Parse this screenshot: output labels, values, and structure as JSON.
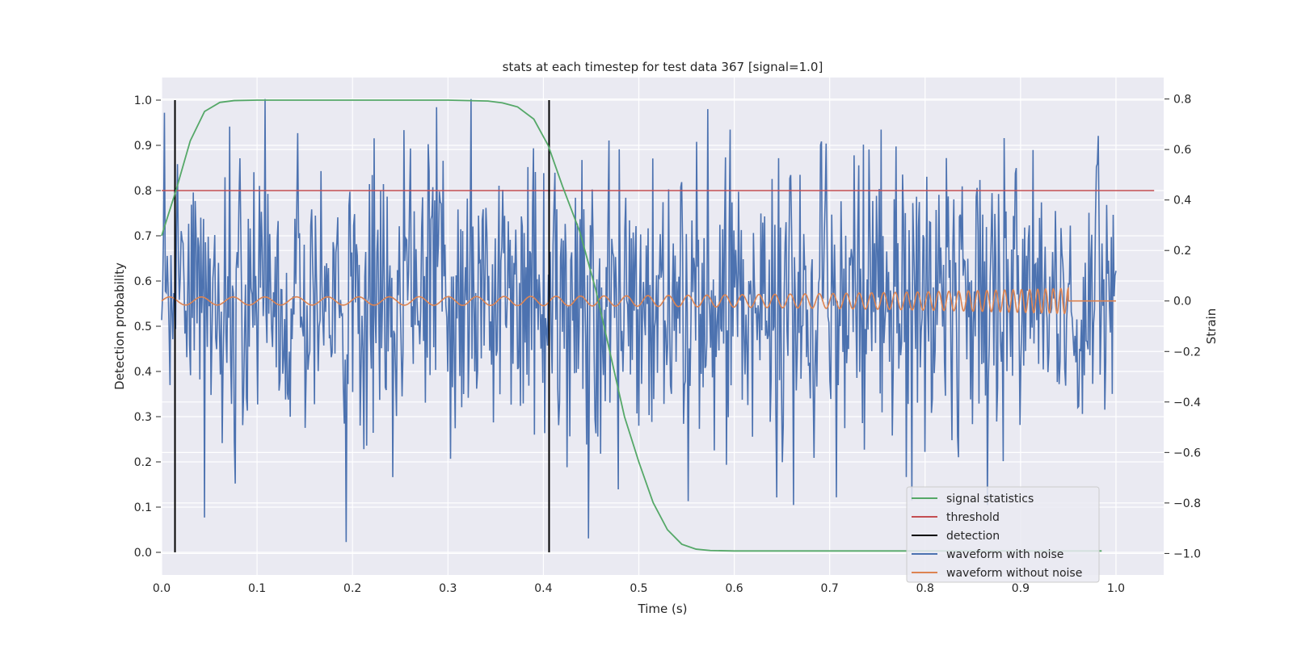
{
  "chart_data": {
    "type": "line",
    "title": "stats at each timestep for test data 367 [signal=1.0]",
    "xlabel": "Time (s)",
    "ylabel": "Detection probability",
    "y2label": "Strain",
    "xlim": [
      0.0,
      1.05
    ],
    "ylim": [
      -0.05,
      1.05
    ],
    "y2lim": [
      -1.085,
      0.885
    ],
    "x_ticks": [
      "0.0",
      "0.1",
      "0.2",
      "0.3",
      "0.4",
      "0.5",
      "0.6",
      "0.7",
      "0.8",
      "0.9",
      "1.0"
    ],
    "y_ticks": [
      "0.0",
      "0.1",
      "0.2",
      "0.3",
      "0.4",
      "0.5",
      "0.6",
      "0.7",
      "0.8",
      "0.9",
      "1.0"
    ],
    "y2_ticks": [
      "−1.0",
      "−0.8",
      "−0.6",
      "−0.4",
      "−0.2",
      "0.0",
      "0.2",
      "0.4",
      "0.6",
      "0.8"
    ],
    "grid": true,
    "legend_position": "lower-right",
    "series": [
      {
        "name": "signal statistics",
        "color": "#55a868",
        "axis": "left",
        "x": [
          0.0,
          0.015,
          0.03,
          0.045,
          0.061,
          0.076,
          0.1,
          0.2,
          0.3,
          0.342,
          0.357,
          0.373,
          0.39,
          0.405,
          0.42,
          0.438,
          0.455,
          0.47,
          0.485,
          0.5,
          0.515,
          0.53,
          0.545,
          0.56,
          0.575,
          0.6,
          0.7,
          0.8,
          0.9,
          0.985
        ],
        "y": [
          0.7,
          0.8,
          0.91,
          0.975,
          0.995,
          0.999,
          1.0,
          1.0,
          1.0,
          0.998,
          0.994,
          0.985,
          0.958,
          0.9,
          0.81,
          0.71,
          0.58,
          0.44,
          0.3,
          0.2,
          0.11,
          0.05,
          0.018,
          0.007,
          0.004,
          0.003,
          0.003,
          0.003,
          0.003,
          0.003
        ]
      },
      {
        "name": "threshold",
        "color": "#c44e52",
        "axis": "left",
        "x": [
          0.0,
          1.04
        ],
        "y": [
          0.8,
          0.8
        ]
      },
      {
        "name": "detection",
        "color": "#000000",
        "axis": "left",
        "x_positions": [
          0.014,
          0.406
        ],
        "y_range": [
          0.0,
          1.0
        ]
      },
      {
        "name": "waveform with noise",
        "color": "#4c72b0",
        "axis": "right",
        "time_range": [
          0.0,
          1.0
        ],
        "strain_range": [
          -1.0,
          0.8
        ],
        "std": 0.3,
        "samples": 1024
      },
      {
        "name": "waveform without noise",
        "color": "#dd8452",
        "axis": "right",
        "time_range": [
          0.0,
          1.0
        ],
        "merger_time": 0.95,
        "amplitude_start": 0.016,
        "amplitude_end": 0.05,
        "frequency_start": 30,
        "frequency_end": 130
      }
    ]
  }
}
